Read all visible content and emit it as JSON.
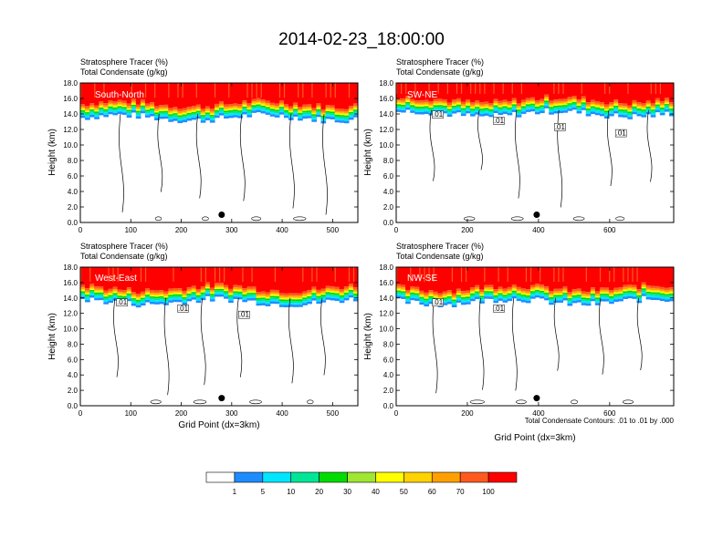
{
  "figure": {
    "title": "2014-02-23_18:00:00",
    "x_axis_label": "Grid Point (dx=3km)",
    "contour_note": "Total Condensate Contours: .01 to .01 by .000",
    "field_label_1": "Stratosphere Tracer   (%)",
    "field_label_2": "Total Condensate   (g/kg)",
    "y_axis_label": "Height (km)"
  },
  "colorbar": {
    "colors": [
      "#ffffff",
      "#1e8cff",
      "#00e6ff",
      "#00e697",
      "#00dc00",
      "#a0e632",
      "#ffff00",
      "#ffd200",
      "#ffa000",
      "#ff5a1e",
      "#ff0000"
    ],
    "labels": [
      "1",
      "5",
      "10",
      "20",
      "30",
      "40",
      "50",
      "60",
      "70",
      "100"
    ]
  },
  "chart_data": [
    {
      "type": "heatmap",
      "panel": "South-North",
      "xlim": [
        0,
        550
      ],
      "ylim": [
        0,
        18
      ],
      "x_ticks": [
        "0",
        "100",
        "200",
        "300",
        "400",
        "500"
      ],
      "y_ticks": [
        "0.0",
        "2.0",
        "4.0",
        "6.0",
        "8.0",
        "10.0",
        "12.0",
        "14.0",
        "16.0",
        "18.0"
      ],
      "tracer_top_boundary_km": 14.5,
      "marker_x": 280,
      "contour_labels": []
    },
    {
      "type": "heatmap",
      "panel": "SW-NE",
      "xlim": [
        0,
        780
      ],
      "ylim": [
        0,
        18
      ],
      "x_ticks": [
        "0",
        "200",
        "400",
        "600"
      ],
      "y_ticks": [
        "0.0",
        "2.0",
        "4.0",
        "6.0",
        "8.0",
        "10.0",
        "12.0",
        "14.0",
        "16.0",
        "18.0"
      ],
      "tracer_top_boundary_km": 15.0,
      "marker_x": 395,
      "contour_labels": [
        ".01",
        ".01",
        ".01",
        ".01"
      ]
    },
    {
      "type": "heatmap",
      "panel": "West-East",
      "xlim": [
        0,
        550
      ],
      "ylim": [
        0,
        18
      ],
      "x_ticks": [
        "0",
        "100",
        "200",
        "300",
        "400",
        "500"
      ],
      "y_ticks": [
        "0.0",
        "2.0",
        "4.0",
        "6.0",
        "8.0",
        "10.0",
        "12.0",
        "14.0",
        "16.0",
        "18.0"
      ],
      "tracer_top_boundary_km": 14.5,
      "marker_x": 280,
      "contour_labels": [
        ".01",
        ".01",
        ".01"
      ]
    },
    {
      "type": "heatmap",
      "panel": "NW-SE",
      "xlim": [
        0,
        780
      ],
      "ylim": [
        0,
        18
      ],
      "x_ticks": [
        "0",
        "200",
        "400",
        "600"
      ],
      "y_ticks": [
        "0.0",
        "2.0",
        "4.0",
        "6.0",
        "8.0",
        "10.0",
        "12.0",
        "14.0",
        "16.0",
        "18.0"
      ],
      "tracer_top_boundary_km": 14.5,
      "marker_x": 395,
      "contour_labels": [
        ".01",
        ".01"
      ]
    }
  ]
}
